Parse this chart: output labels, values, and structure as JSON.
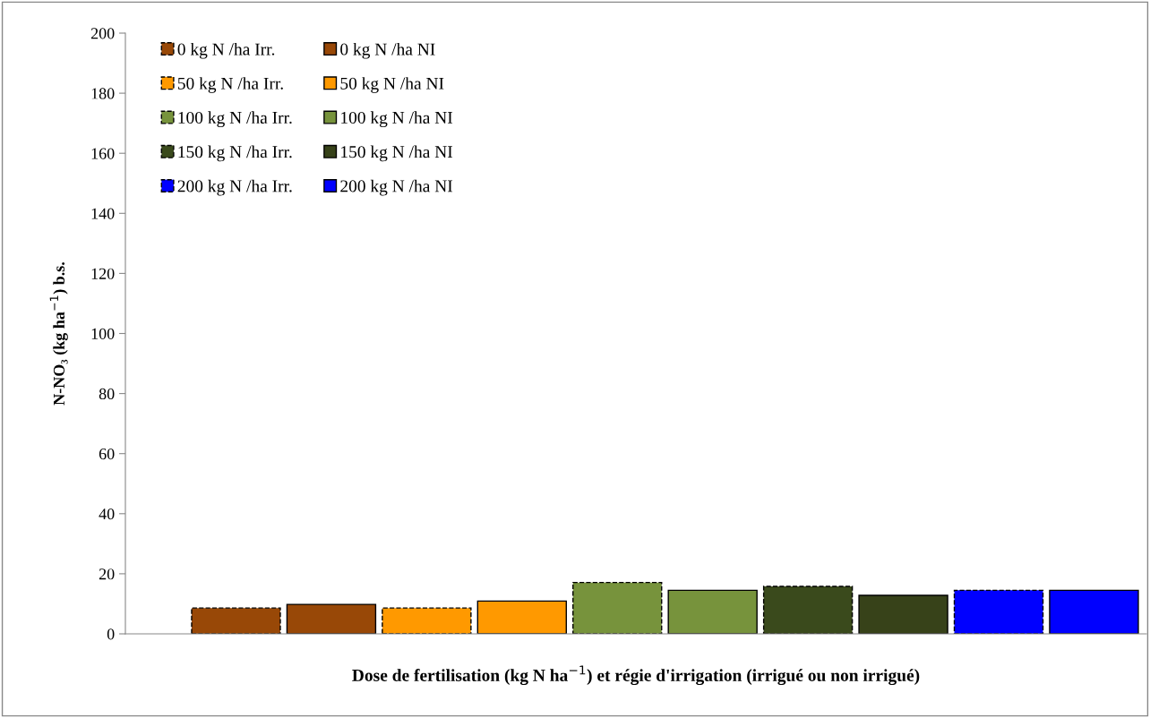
{
  "chart_data": {
    "type": "bar",
    "xlabel": "Dose de fertilisation (kg N ha$^{−1}$) et régie d'irrigation (irrigué ou non irrigué)",
    "ylabel": "N-NO₃ (kg ha$^{−1}$) b.s.",
    "categories": [
      null
    ],
    "series": [
      {
        "name": "0 kg N /ha Irr.",
        "color": "#984807",
        "values": [
          8.6
        ],
        "line_style": "dashed"
      },
      {
        "name": "0 kg N /ha NI",
        "color": "#984807",
        "values": [
          9.8
        ]
      },
      {
        "name": "50 kg N /ha Irr.",
        "color": "#ff9900",
        "values": [
          8.6
        ],
        "line_style": "dashed"
      },
      {
        "name": "50 kg N /ha NI",
        "color": "#ff9900",
        "values": [
          10.9
        ]
      },
      {
        "name": "100 kg N /ha Irr.",
        "color": "#77933c",
        "values": [
          17.1
        ],
        "line_style": "dashed"
      },
      {
        "name": "100 kg N /ha NI",
        "color": "#77933c",
        "values": [
          14.5
        ]
      },
      {
        "name": "150 kg N /ha Irr.",
        "color": "#3a4a1c",
        "values": [
          15.8
        ],
        "line_style": "dashed"
      },
      {
        "name": "150 kg N /ha NI",
        "color": "#374219",
        "values": [
          12.8
        ]
      },
      {
        "name": "200 kg N /ha Irr.",
        "color": "#0000ff",
        "values": [
          14.5
        ],
        "line_style": "dashed"
      },
      {
        "name": "200 kg N /ha NI",
        "color": "#0000ff",
        "values": [
          14.5
        ]
      }
    ],
    "ylim": [
      0,
      200
    ],
    "yticks": [
      0,
      20,
      40,
      60,
      80,
      100,
      120,
      140,
      160,
      180,
      200
    ],
    "grid": false,
    "legend": "top left"
  }
}
